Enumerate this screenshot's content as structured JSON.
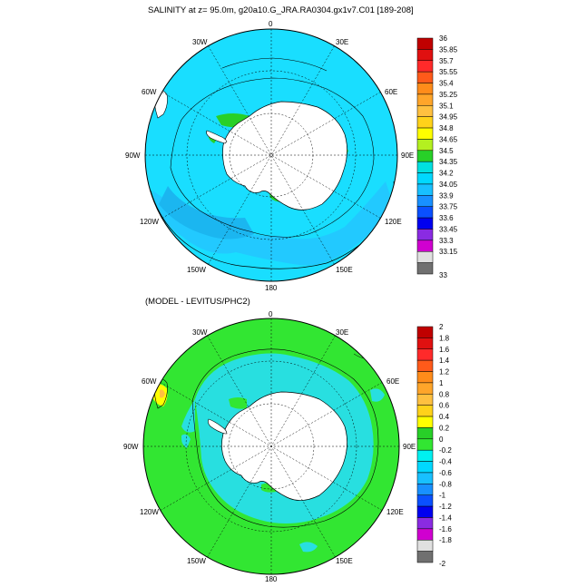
{
  "top_panel": {
    "title": "SALINITY at z=  95.0m, g20a10.G_JRA.RA0304.gx1v7.C01 [189-208]",
    "lon_labels": {
      "n": "0",
      "ne": "30E",
      "e1": "60E",
      "e2": "90E",
      "se": "120E",
      "s1": "150E",
      "s": "180",
      "sw": "150W",
      "w1": "120W",
      "w2": "90W",
      "nw1": "60W",
      "nw2": "30W"
    },
    "colorbar": {
      "labels": [
        "36",
        "35.85",
        "35.7",
        "35.55",
        "35.4",
        "35.25",
        "35.1",
        "34.95",
        "34.8",
        "34.65",
        "34.5",
        "34.35",
        "34.2",
        "34.05",
        "33.9",
        "33.75",
        "33.6",
        "33.45",
        "33.3",
        "33.15",
        "33"
      ],
      "colors": [
        "#c00000",
        "#e01010",
        "#ff2a2a",
        "#ff5a1a",
        "#ff8c1a",
        "#ffa52a",
        "#ffc040",
        "#ffd21a",
        "#ffff00",
        "#b4f020",
        "#28d028",
        "#00e0e0",
        "#00d8ff",
        "#18c0ff",
        "#1890ff",
        "#0a50ff",
        "#0000f0",
        "#8a2be2",
        "#d000d0",
        "#e0e0e0",
        "#707070"
      ]
    }
  },
  "bottom_panel": {
    "title": "(MODEL - LEVITUS/PHC2)",
    "lon_labels": {
      "n": "0",
      "ne": "30E",
      "e1": "60E",
      "e2": "90E",
      "se": "120E",
      "s1": "150E",
      "s": "180",
      "sw": "150W",
      "w1": "120W",
      "w2": "90W",
      "nw1": "60W",
      "nw2": "30W"
    },
    "colorbar": {
      "labels": [
        "2",
        "1.8",
        "1.6",
        "1.4",
        "1.2",
        "1",
        "0.8",
        "0.6",
        "0.4",
        "0.2",
        "0",
        "-0.2",
        "-0.4",
        "-0.6",
        "-0.8",
        "-1",
        "-1.2",
        "-1.4",
        "-1.6",
        "-1.8",
        "-2"
      ],
      "colors": [
        "#c00000",
        "#e01010",
        "#ff2a2a",
        "#ff5a1a",
        "#ff8c1a",
        "#ffa52a",
        "#ffc040",
        "#ffd21a",
        "#ffff00",
        "#28d028",
        "#32e632",
        "#00f0f0",
        "#00d8ff",
        "#18c0ff",
        "#1890ff",
        "#0a50ff",
        "#0000f0",
        "#8a2be2",
        "#d000d0",
        "#e0e0e0",
        "#707070"
      ]
    }
  },
  "colors": {
    "top_ocean": "#19deff",
    "top_ring_band": "#22c9ff",
    "top_shelf": "#28d028",
    "bottom_ocean": "#32e632",
    "bottom_mid": "#28dfe0",
    "land": "#ffffff"
  }
}
